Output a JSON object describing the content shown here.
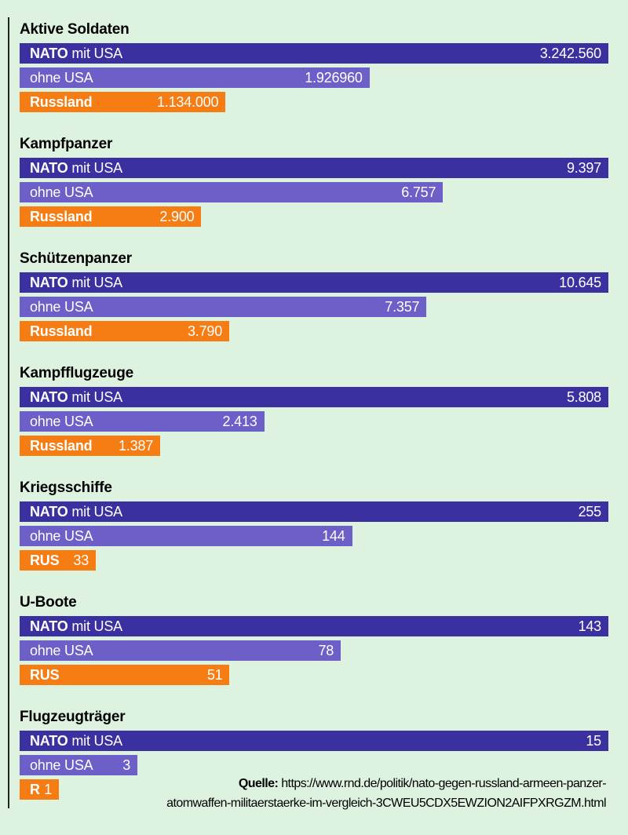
{
  "colors": {
    "background": "#ddf2df",
    "nato_with_usa": "#3b309f",
    "nato_without_usa": "#6c5fc7",
    "russia": "#f57d14",
    "bar_text": "#ffffff",
    "title_text": "#000000",
    "rule": "#242424"
  },
  "source": {
    "label": "Quelle:",
    "line1": "https://www.rnd.de/politik/nato-gegen-russland-armeen-panzer-",
    "line2": "atomwaffen-militaerstaerke-im-vergleich-3CWEU5CDX5EWZION2AIFPXRGZM.html"
  },
  "chart_data": {
    "type": "bar",
    "orientation": "horizontal",
    "legend": false,
    "grid": false,
    "series_names": [
      "NATO mit USA",
      "NATO ohne USA",
      "Russland"
    ],
    "note": "Bar lengths proportional to values within each category group",
    "sections": [
      {
        "title": "Aktive Soldaten",
        "bars": [
          {
            "label_bold": "NATO",
            "label_rest": " mit USA",
            "value": 3242560,
            "display": "3.242.560",
            "series": "nato_with_usa"
          },
          {
            "label_bold": "",
            "label_rest": "ohne USA",
            "value": 1926960,
            "display": "1.926960",
            "series": "nato_without_usa"
          },
          {
            "label_bold": "Russland",
            "label_rest": "",
            "value": 1134000,
            "display": "1.134.000",
            "series": "russia"
          }
        ]
      },
      {
        "title": "Kampfpanzer",
        "bars": [
          {
            "label_bold": "NATO",
            "label_rest": " mit USA",
            "value": 9397,
            "display": "9.397",
            "series": "nato_with_usa"
          },
          {
            "label_bold": "",
            "label_rest": "ohne USA",
            "value": 6757,
            "display": "6.757",
            "series": "nato_without_usa"
          },
          {
            "label_bold": "Russland",
            "label_rest": "",
            "value": 2900,
            "display": "2.900",
            "series": "russia"
          }
        ]
      },
      {
        "title": "Schützenpanzer",
        "bars": [
          {
            "label_bold": "NATO",
            "label_rest": " mit USA",
            "value": 10645,
            "display": "10.645",
            "series": "nato_with_usa"
          },
          {
            "label_bold": "",
            "label_rest": "ohne USA",
            "value": 7357,
            "display": "7.357",
            "series": "nato_without_usa"
          },
          {
            "label_bold": "Russland",
            "label_rest": "",
            "value": 3790,
            "display": "3.790",
            "series": "russia"
          }
        ]
      },
      {
        "title": "Kampfflugzeuge",
        "bars": [
          {
            "label_bold": "NATO",
            "label_rest": " mit USA",
            "value": 5808,
            "display": "5.808",
            "series": "nato_with_usa"
          },
          {
            "label_bold": "",
            "label_rest": "ohne USA",
            "value": 2413,
            "display": "2.413",
            "series": "nato_without_usa"
          },
          {
            "label_bold": "Russland",
            "label_rest": "",
            "value": 1387,
            "display": "1.387",
            "series": "russia"
          }
        ]
      },
      {
        "title": "Kriegsschiffe",
        "bars": [
          {
            "label_bold": "NATO",
            "label_rest": " mit USA",
            "value": 255,
            "display": "255",
            "series": "nato_with_usa"
          },
          {
            "label_bold": "",
            "label_rest": "ohne USA",
            "value": 144,
            "display": "144",
            "series": "nato_without_usa"
          },
          {
            "label_bold": "RUS",
            "label_rest": "",
            "value": 33,
            "display": "33",
            "series": "russia"
          }
        ]
      },
      {
        "title": "U-Boote",
        "bars": [
          {
            "label_bold": "NATO",
            "label_rest": " mit USA",
            "value": 143,
            "display": "143",
            "series": "nato_with_usa"
          },
          {
            "label_bold": "",
            "label_rest": "ohne USA",
            "value": 78,
            "display": "78",
            "series": "nato_without_usa"
          },
          {
            "label_bold": "RUS",
            "label_rest": "",
            "value": 51,
            "display": "51",
            "series": "russia"
          }
        ]
      },
      {
        "title": "Flugzeugträger",
        "bars": [
          {
            "label_bold": "NATO",
            "label_rest": " mit USA",
            "value": 15,
            "display": "15",
            "series": "nato_with_usa"
          },
          {
            "label_bold": "",
            "label_rest": "ohne USA",
            "value": 3,
            "display": "3",
            "series": "nato_without_usa"
          },
          {
            "label_bold": "R",
            "label_rest": "",
            "value": 1,
            "display": "1",
            "series": "russia"
          }
        ]
      }
    ]
  }
}
